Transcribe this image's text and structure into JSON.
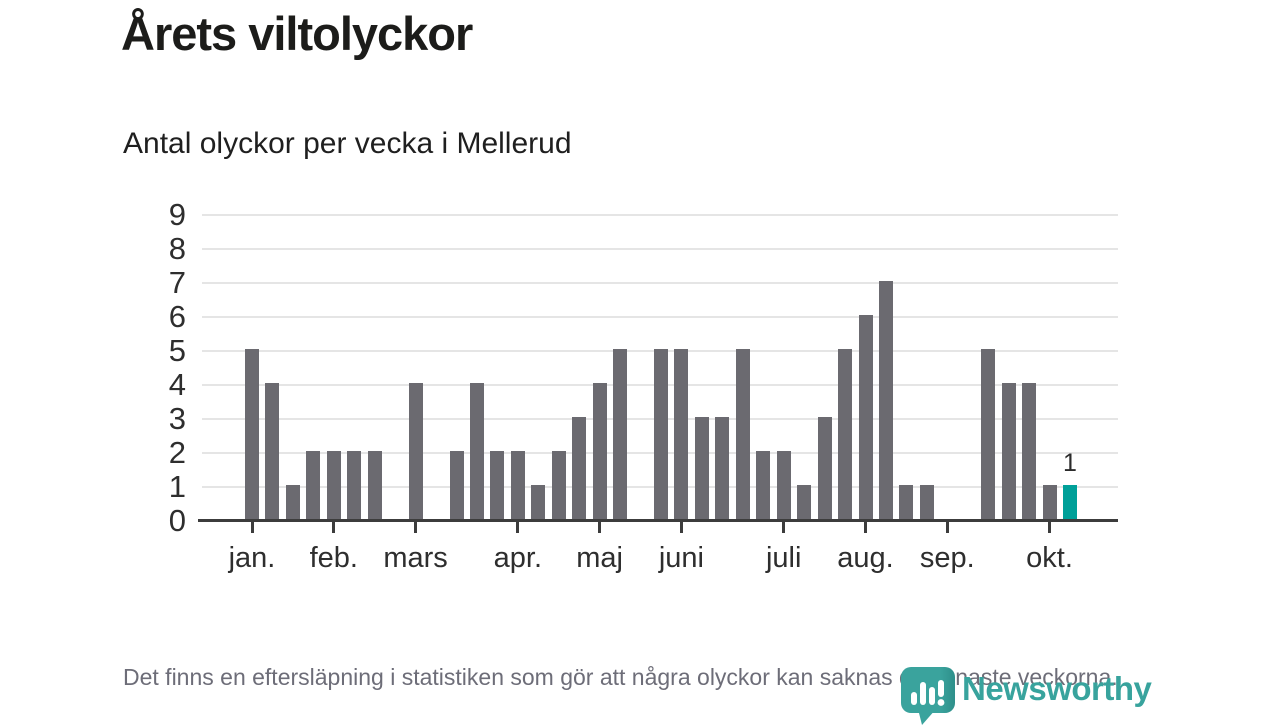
{
  "chart_data": {
    "type": "bar",
    "title": "Årets viltolyckor",
    "subtitle": "Antal olyckor per vecka i Mellerud",
    "x_unit": "week",
    "values": [
      5,
      4,
      1,
      2,
      2,
      2,
      2,
      0,
      4,
      0,
      2,
      4,
      2,
      2,
      1,
      2,
      3,
      4,
      5,
      0,
      5,
      5,
      3,
      3,
      5,
      2,
      2,
      1,
      3,
      5,
      6,
      7,
      1,
      1,
      0,
      0,
      5,
      4,
      4,
      1,
      1
    ],
    "months": [
      {
        "label": "jan.",
        "week": 1
      },
      {
        "label": "feb.",
        "week": 5
      },
      {
        "label": "mars",
        "week": 9
      },
      {
        "label": "apr.",
        "week": 14
      },
      {
        "label": "maj",
        "week": 18
      },
      {
        "label": "juni",
        "week": 22
      },
      {
        "label": "juli",
        "week": 27
      },
      {
        "label": "aug.",
        "week": 31
      },
      {
        "label": "sep.",
        "week": 35
      },
      {
        "label": "okt.",
        "week": 40
      }
    ],
    "yticks": [
      0,
      1,
      2,
      3,
      4,
      5,
      6,
      7,
      8,
      9
    ],
    "ylim": [
      0,
      9
    ],
    "grid": true,
    "legend": "none",
    "bar_color": "#6b6a70",
    "highlight_color": "#00a099",
    "highlight_last_bar": true,
    "last_bar_label": "1"
  },
  "footer": {
    "note": "Det finns en eftersläpning i statistiken som gör att några olyckor kan saknas de senaste veckorna."
  },
  "branding": {
    "logo_text": "Newsworthy",
    "logo_color": "#38a39d",
    "logo_icon": "bar-chart-speech-bubble-icon"
  }
}
